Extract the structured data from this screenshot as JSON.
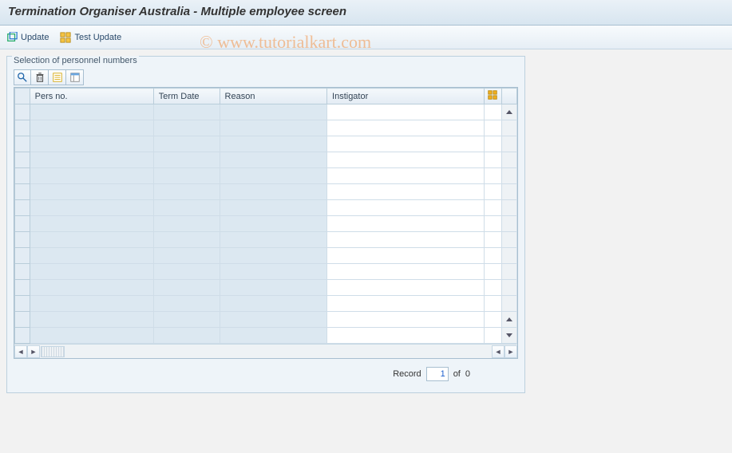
{
  "window": {
    "title": "Termination Organiser Australia - Multiple employee screen"
  },
  "toolbar": {
    "update_label": "Update",
    "test_update_label": "Test Update"
  },
  "group": {
    "label": "Selection of personnel numbers"
  },
  "icons": {
    "search": "search-icon",
    "delete": "trash-icon",
    "list": "list-icon",
    "layout": "layout-icon"
  },
  "grid": {
    "columns": {
      "pers_no": "Pers no.",
      "term_date": "Term Date",
      "reason": "Reason",
      "instigator": "Instigator"
    },
    "row_count": 15,
    "colors": {
      "header_bg_top": "#f4f8fb",
      "header_bg_bottom": "#e3ecf4",
      "shade_bg": "#dce8f1",
      "white_bg": "#ffffff",
      "border": "#b9cdda"
    }
  },
  "record": {
    "label_before": "Record",
    "value": "1",
    "label_mid": "of",
    "total": "0"
  },
  "watermark": "© www.tutorialkart.com"
}
